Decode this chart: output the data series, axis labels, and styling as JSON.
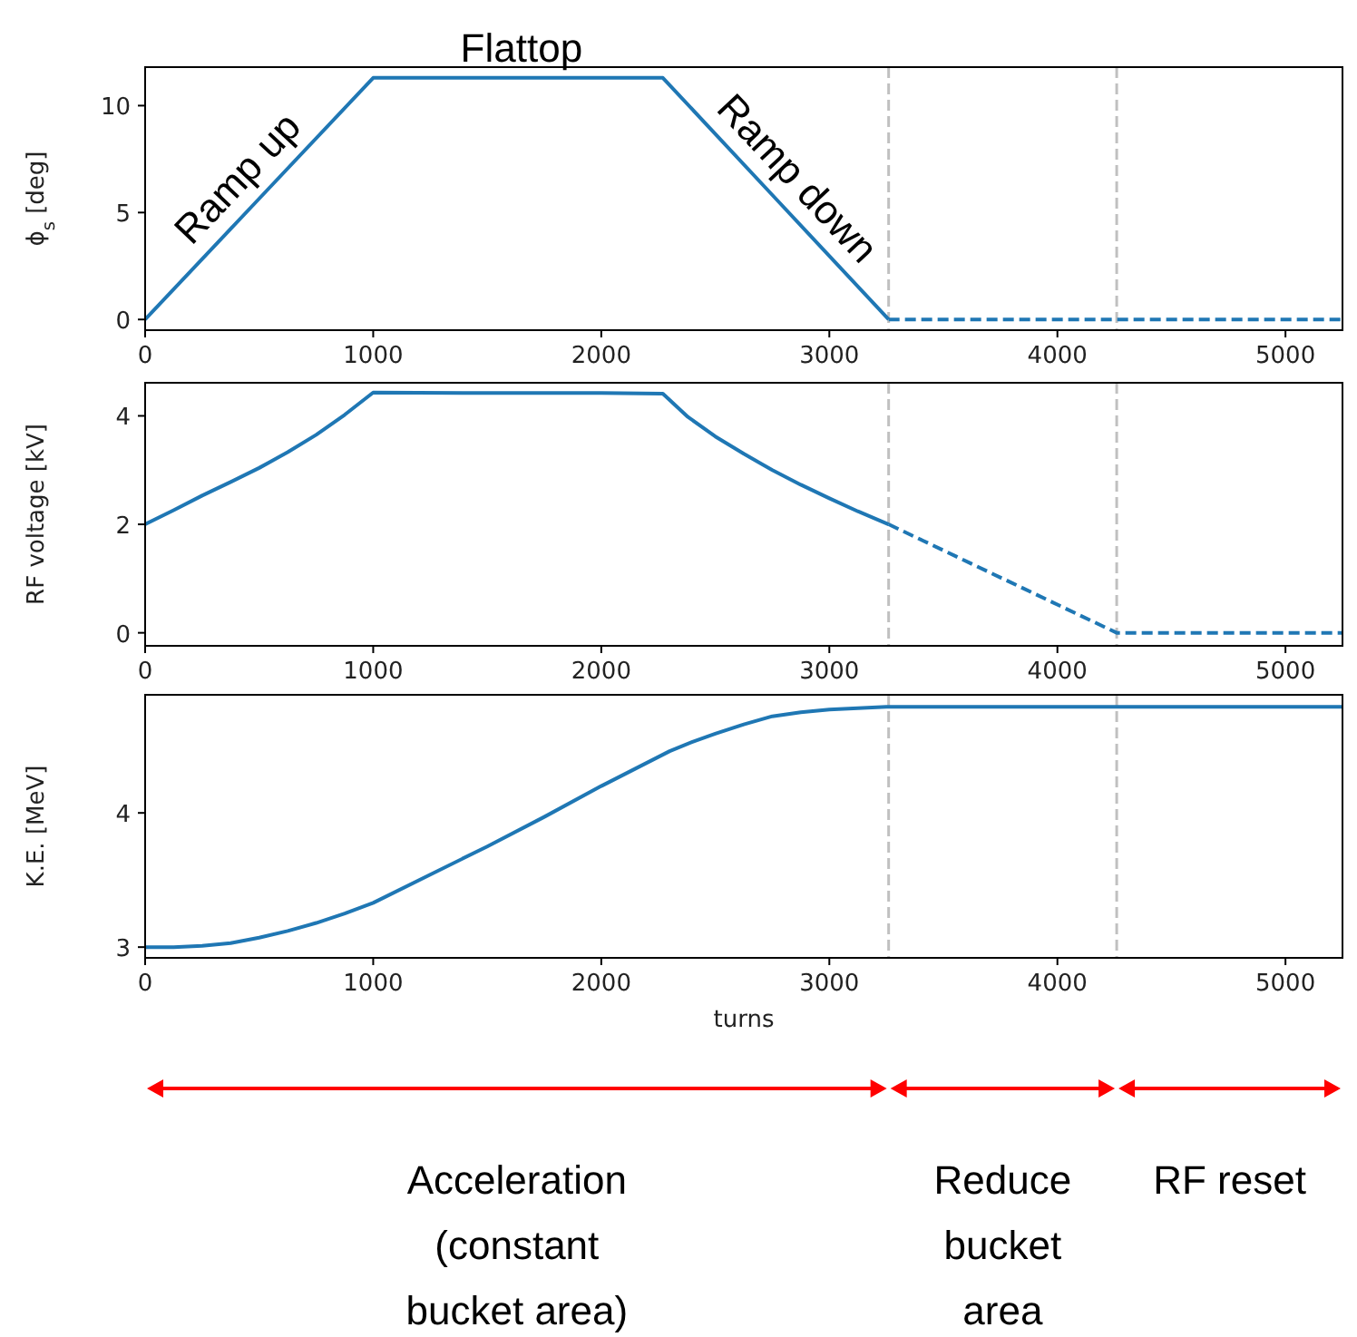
{
  "chart_data": [
    {
      "type": "line",
      "ylabel": "ϕ$_{s}$ [deg]",
      "xlim": [
        0,
        5250
      ],
      "xticks": [
        0,
        1000,
        2000,
        3000,
        4000,
        5000
      ],
      "ylim": [
        -0.5,
        11.8
      ],
      "yticks": [
        0,
        5,
        10
      ],
      "series": [
        {
          "color": "#1f77b4",
          "line_style": "solid",
          "x": [
            0,
            500,
            1000,
            2270,
            2765,
            3260
          ],
          "values": [
            0,
            5.65,
            11.3,
            11.3,
            5.65,
            0
          ]
        },
        {
          "color": "#1f77b4",
          "line_style": "dashed",
          "x": [
            3260,
            5250
          ],
          "values": [
            0,
            0
          ]
        }
      ],
      "ref_lines": [
        {
          "axis": "x",
          "value": 3260,
          "color": "#c0c0c0",
          "line_style": "dashed"
        },
        {
          "axis": "x",
          "value": 4260,
          "color": "#c0c0c0",
          "line_style": "dashed"
        }
      ],
      "annotations": [
        {
          "text": "Ramp up",
          "x": 500,
          "y": 5.65
        },
        {
          "text": "Flattop",
          "x": 1650,
          "y": 11.3
        },
        {
          "text": "Ramp down",
          "x": 2765,
          "y": 5.65
        }
      ]
    },
    {
      "type": "line",
      "ylabel": "RF voltage [kV]",
      "xlim": [
        0,
        5250
      ],
      "xticks": [
        0,
        1000,
        2000,
        3000,
        4000,
        5000
      ],
      "ylim": [
        -0.24,
        4.61
      ],
      "yticks": [
        0,
        2,
        4
      ],
      "series": [
        {
          "color": "#1f77b4",
          "line_style": "solid",
          "x": [
            0,
            125,
            250,
            375,
            500,
            625,
            750,
            875,
            1000,
            1500,
            2000,
            2270,
            2380,
            2500,
            2625,
            2750,
            2875,
            3000,
            3125,
            3260
          ],
          "values": [
            2.0,
            2.26,
            2.53,
            2.78,
            3.04,
            3.33,
            3.65,
            4.02,
            4.43,
            4.42,
            4.42,
            4.41,
            3.98,
            3.62,
            3.3,
            3.0,
            2.73,
            2.48,
            2.24,
            2.0
          ]
        },
        {
          "color": "#1f77b4",
          "line_style": "dashed",
          "x": [
            3260,
            4260,
            5250
          ],
          "values": [
            2.0,
            0,
            0
          ]
        }
      ],
      "ref_lines": [
        {
          "axis": "x",
          "value": 3260,
          "color": "#c0c0c0",
          "line_style": "dashed"
        },
        {
          "axis": "x",
          "value": 4260,
          "color": "#c0c0c0",
          "line_style": "dashed"
        }
      ]
    },
    {
      "type": "line",
      "ylabel": "K.E. [MeV]",
      "xlabel": "turns",
      "xlim": [
        0,
        5250
      ],
      "xticks": [
        0,
        1000,
        2000,
        3000,
        4000,
        5000
      ],
      "ylim": [
        2.92,
        4.88
      ],
      "yticks": [
        3,
        4
      ],
      "series": [
        {
          "color": "#1f77b4",
          "line_style": "solid",
          "x": [
            0,
            125,
            250,
            375,
            500,
            625,
            750,
            875,
            1000,
            1250,
            1500,
            1750,
            2000,
            2150,
            2300,
            2400,
            2500,
            2625,
            2750,
            2875,
            3000,
            3125,
            3250,
            4000,
            5250
          ],
          "values": [
            3.0,
            3.0,
            3.01,
            3.03,
            3.07,
            3.12,
            3.18,
            3.25,
            3.33,
            3.54,
            3.75,
            3.97,
            4.2,
            4.33,
            4.46,
            4.53,
            4.59,
            4.66,
            4.72,
            4.75,
            4.77,
            4.78,
            4.79,
            4.79,
            4.79
          ]
        }
      ],
      "ref_lines": [
        {
          "axis": "x",
          "value": 3260,
          "color": "#c0c0c0",
          "line_style": "dashed"
        },
        {
          "axis": "x",
          "value": 4260,
          "color": "#c0c0c0",
          "line_style": "dashed"
        }
      ],
      "annotations": [
        "Acceleration (constant bucket area)",
        "Reduce bucket area",
        "RF reset"
      ]
    }
  ]
}
